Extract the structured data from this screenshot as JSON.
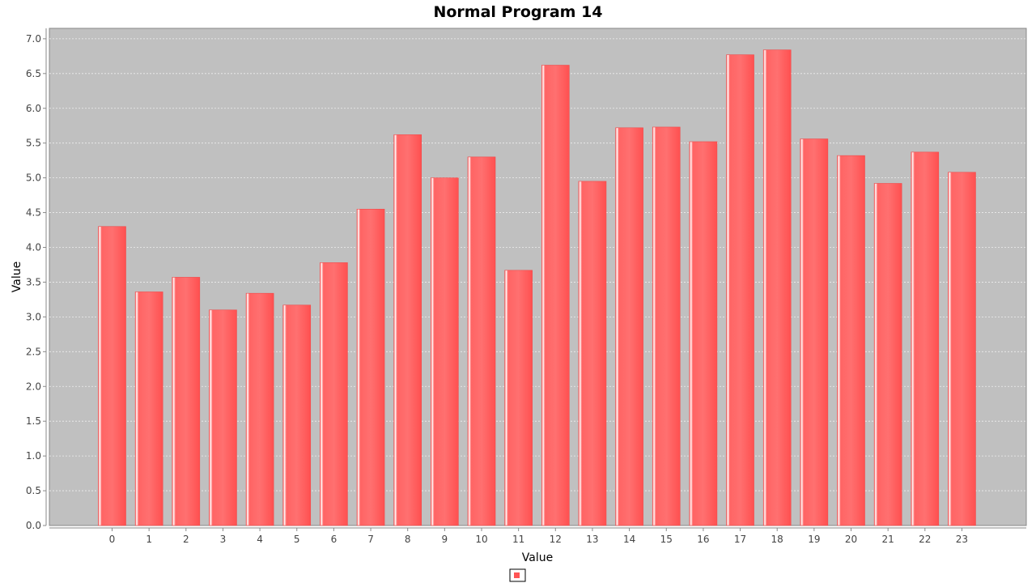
{
  "chart_data": {
    "type": "bar",
    "title": "Normal Program 14",
    "xlabel": "Value",
    "ylabel": "Value",
    "categories": [
      "0",
      "1",
      "2",
      "3",
      "4",
      "5",
      "6",
      "7",
      "8",
      "9",
      "10",
      "11",
      "12",
      "13",
      "14",
      "15",
      "16",
      "17",
      "18",
      "19",
      "20",
      "21",
      "22",
      "23"
    ],
    "series": [
      {
        "values": [
          4.3,
          3.36,
          3.57,
          3.1,
          3.34,
          3.17,
          3.78,
          4.55,
          5.62,
          5.0,
          5.3,
          3.67,
          6.62,
          4.95,
          5.72,
          5.73,
          5.52,
          6.77,
          6.84,
          5.56,
          5.32,
          4.92,
          5.37,
          5.08
        ],
        "color": "#ff5555"
      }
    ],
    "ylim": [
      0,
      7.15
    ],
    "yticks": [
      "0.0",
      "0.5",
      "1.0",
      "1.5",
      "2.0",
      "2.5",
      "3.0",
      "3.5",
      "4.0",
      "4.5",
      "5.0",
      "5.5",
      "6.0",
      "6.5",
      "7.0"
    ],
    "grid": true,
    "legend": {
      "position": "bottom-center",
      "entries": [
        ""
      ]
    },
    "colors": {
      "plot_background": "#c0c0c0",
      "gridline": "#eeeeee",
      "bar": "#ff5555",
      "bar_highlight": "#ffffff"
    }
  }
}
